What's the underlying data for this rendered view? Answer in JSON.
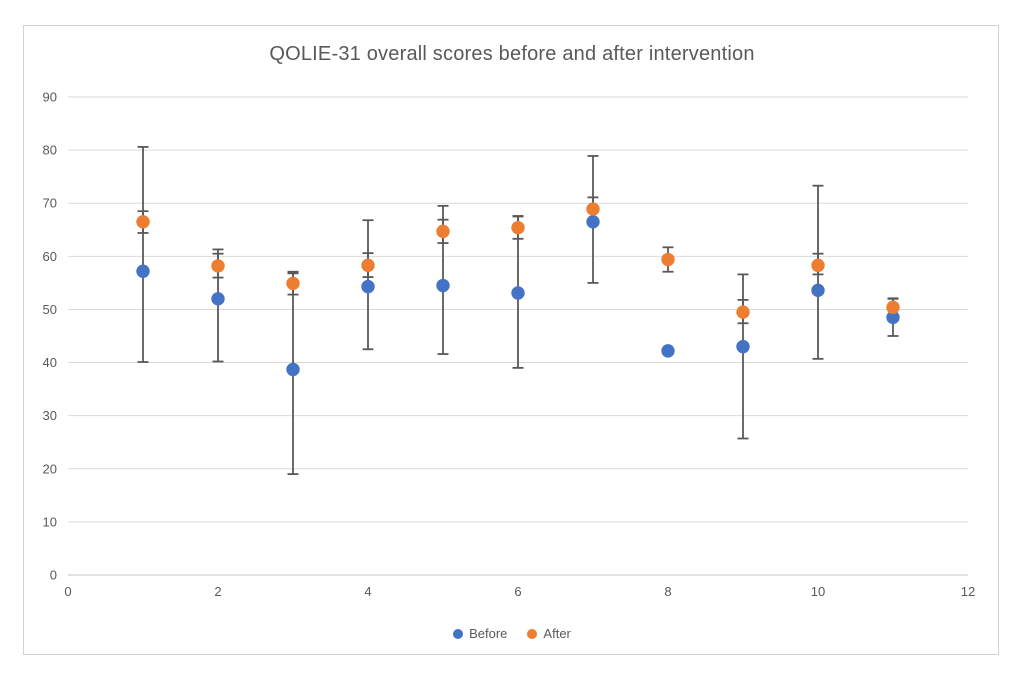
{
  "chart_data": {
    "type": "scatter",
    "title": "QOLIE-31 overall scores before and after intervention",
    "xlabel": "",
    "ylabel": "",
    "xlim": [
      0,
      12
    ],
    "ylim": [
      0,
      90
    ],
    "x_ticks": [
      0,
      2,
      4,
      6,
      8,
      10,
      12
    ],
    "y_ticks": [
      0,
      10,
      20,
      30,
      40,
      50,
      60,
      70,
      80,
      90
    ],
    "grid": "horizontal",
    "legend_position": "bottom-center",
    "error_bars": "absolute low/high per point, null = no bar shown",
    "series": [
      {
        "name": "Before",
        "color": "#4472c4",
        "points": [
          {
            "x": 1,
            "y": 57.2,
            "err_low": 40.1,
            "err_high": 80.6
          },
          {
            "x": 2,
            "y": 52.0,
            "err_low": 40.2,
            "err_high": 61.3
          },
          {
            "x": 3,
            "y": 38.7,
            "err_low": 19.0,
            "err_high": 56.8
          },
          {
            "x": 4,
            "y": 54.3,
            "err_low": 42.5,
            "err_high": 66.8
          },
          {
            "x": 5,
            "y": 54.5,
            "err_low": 41.6,
            "err_high": 69.5
          },
          {
            "x": 6,
            "y": 53.1,
            "err_low": 39.0,
            "err_high": 67.5
          },
          {
            "x": 7,
            "y": 66.5,
            "err_low": 55.0,
            "err_high": 78.9
          },
          {
            "x": 8,
            "y": 42.2,
            "err_low": null,
            "err_high": null
          },
          {
            "x": 9,
            "y": 43.0,
            "err_low": 25.7,
            "err_high": 56.6
          },
          {
            "x": 10,
            "y": 53.6,
            "err_low": 40.7,
            "err_high": 73.3
          },
          {
            "x": 11,
            "y": 48.5,
            "err_low": 45.0,
            "err_high": 52.1
          }
        ]
      },
      {
        "name": "After",
        "color": "#ed7d31",
        "points": [
          {
            "x": 1,
            "y": 66.5,
            "err_low": 64.4,
            "err_high": 68.5
          },
          {
            "x": 2,
            "y": 58.2,
            "err_low": 56.0,
            "err_high": 60.5
          },
          {
            "x": 3,
            "y": 54.9,
            "err_low": 52.8,
            "err_high": 57.1
          },
          {
            "x": 4,
            "y": 58.3,
            "err_low": 56.1,
            "err_high": 60.6
          },
          {
            "x": 5,
            "y": 64.7,
            "err_low": 62.5,
            "err_high": 66.9
          },
          {
            "x": 6,
            "y": 65.4,
            "err_low": 63.3,
            "err_high": 67.6
          },
          {
            "x": 7,
            "y": 68.9,
            "err_low": 66.7,
            "err_high": 71.1
          },
          {
            "x": 8,
            "y": 59.4,
            "err_low": 57.1,
            "err_high": 61.7
          },
          {
            "x": 9,
            "y": 49.5,
            "err_low": 47.4,
            "err_high": 51.8
          },
          {
            "x": 10,
            "y": 58.3,
            "err_low": 56.6,
            "err_high": 60.5
          },
          {
            "x": 11,
            "y": 50.4,
            "err_low": 48.8,
            "err_high": 52.0
          }
        ]
      }
    ],
    "colors": {
      "grid_color": "#d9d9d9",
      "axis_color": "#c6c6c6",
      "error_bar_color": "#595959",
      "tick_label_color": "#595959",
      "title_color": "#595959",
      "frame_border_color": "#d2d2d2"
    }
  }
}
